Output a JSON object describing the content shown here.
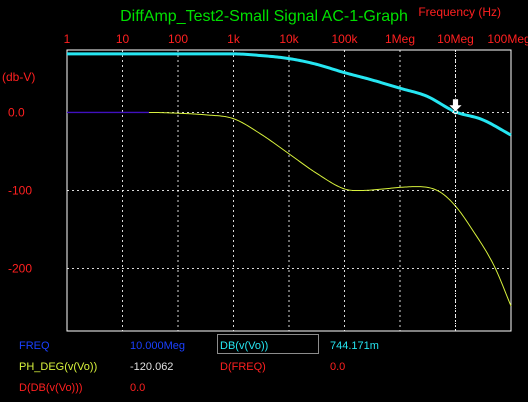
{
  "window": {
    "title": "DiffAmp_Test2-Small Signal AC-1-Graph"
  },
  "colors": {
    "background": "#000000",
    "title": "#00e000",
    "axis_labels": "#ff2020",
    "tick_labels": "#ff2020",
    "grid": "#ffffff",
    "frame": "#ffffff",
    "db_trace": "#26e6f2",
    "phase_trace": "#d8f23c",
    "phase_flat": "#4010c0",
    "cursor": "#ffffff",
    "readout_name_blue": "#1a40ff",
    "readout_name_yellow": "#d8f23c",
    "readout_name_red": "#ff2020",
    "readout_value_cyan": "#26e6f2",
    "readout_value_white": "#e0e0e0"
  },
  "chart_data": {
    "type": "line",
    "title": "DiffAmp_Test2-Small Signal AC-1-Graph",
    "xlabel": "Frequency (Hz)",
    "ylabel": "(db-V)",
    "x_scale": "log",
    "xlim": [
      1,
      100000000
    ],
    "ylim": [
      -280,
      80
    ],
    "x_ticks": [
      {
        "value": 1,
        "label": "1"
      },
      {
        "value": 10,
        "label": "10"
      },
      {
        "value": 100,
        "label": "100"
      },
      {
        "value": 1000,
        "label": "1k"
      },
      {
        "value": 10000,
        "label": "10k"
      },
      {
        "value": 100000,
        "label": "100k"
      },
      {
        "value": 1000000,
        "label": "1Meg"
      },
      {
        "value": 10000000,
        "label": "10Meg"
      },
      {
        "value": 100000000,
        "label": "100Meg"
      }
    ],
    "y_ticks": [
      {
        "value": 0,
        "label": "0.0"
      },
      {
        "value": -100,
        "label": "-100"
      },
      {
        "value": -200,
        "label": "-200"
      }
    ],
    "grid": "dashed",
    "series": [
      {
        "name": "DB(v(Vo))",
        "x": [
          1,
          10,
          100,
          1000,
          3000,
          10000,
          30000,
          100000,
          300000,
          1000000,
          3000000,
          10000000,
          30000000,
          100000000
        ],
        "values": [
          75,
          75,
          75,
          75,
          73,
          69,
          62,
          51,
          42,
          31,
          21,
          0.74,
          -9,
          -29
        ]
      },
      {
        "name": "PH_DEG(v(Vo))",
        "x": [
          1,
          10,
          30,
          100,
          300,
          1000,
          3000,
          10000,
          30000,
          100000,
          200000,
          500000,
          1000000,
          2000000,
          5000000,
          10000000,
          20000000,
          50000000,
          100000000
        ],
        "values": [
          0,
          0,
          0,
          -1,
          -3,
          -8,
          -27,
          -53,
          -77,
          -98,
          -100,
          -98,
          -96,
          -95,
          -101,
          -120,
          -150,
          -197,
          -248
        ]
      }
    ],
    "cursor": {
      "x": 10000000,
      "y": 0.74
    }
  },
  "readouts": [
    {
      "name": "FREQ",
      "value": "10.000Meg"
    },
    {
      "name": "DB(v(Vo))",
      "value": "744.171m"
    },
    {
      "name": "PH_DEG(v(Vo))",
      "value": "-120.062"
    },
    {
      "name": "D(FREQ)",
      "value": "0.0"
    },
    {
      "name": "D(DB(v(Vo)))",
      "value": "0.0"
    }
  ]
}
